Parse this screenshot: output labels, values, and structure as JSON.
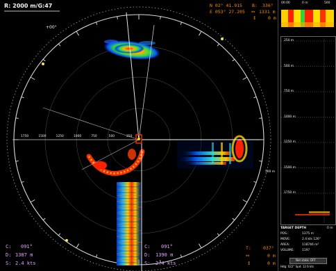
{
  "range_label": "R: 2000 m/G:47",
  "tilt": "+00°",
  "position": {
    "lat": "N 02° 41.915",
    "lon": "E 053° 27.205",
    "bearing_label": "B:",
    "bearing_value": "336°",
    "range_value": "1331 m",
    "depth_value": "0 m"
  },
  "range_ticks": [
    "1750",
    "1500",
    "1250",
    "1000",
    "750",
    "500",
    "250"
  ],
  "right_range_ticks": [
    "500 m"
  ],
  "left_cursor": {
    "course_label": "C:",
    "course": "091°",
    "distance_label": "D:",
    "distance": "1387 m",
    "speed_label": "S:",
    "speed": "2.4 kts"
  },
  "right_cursor": {
    "course_label": "C:",
    "course": "091°",
    "distance_label": "D:",
    "distance": "1390 m",
    "speed_label": "S:",
    "speed": "2.4 kts"
  },
  "target_readout": {
    "t_label": "T:",
    "t_value": "037°",
    "line2_value": "0 m",
    "line3_value": "0 m"
  },
  "scale_top": {
    "left": "00:00",
    "mid": "0 m",
    "right": "500"
  },
  "depth_ticks": [
    "250 m",
    "500 m",
    "750 m",
    "1000 m",
    "1250 m",
    "1500 m",
    "1750 m"
  ],
  "info": {
    "title": "TARGET DEPTH",
    "title_value": "0 m",
    "rows": [
      {
        "label": "POS.:",
        "value": "1375 m"
      },
      {
        "label": "MOVE:",
        "value": "2.4 kts 126°"
      },
      {
        "label": "AREA:",
        "value": "118746 m²"
      },
      {
        "label": "VOLUME:",
        "value": "1197"
      }
    ],
    "net_state": "Net state: OFF",
    "status": "Hdg: 022°  Spd: 12.6 kts"
  },
  "colors": {
    "accent_orange": "#ff8a00",
    "cursor_pink": "#e8a0ff",
    "ring": "#d8d8d8"
  }
}
